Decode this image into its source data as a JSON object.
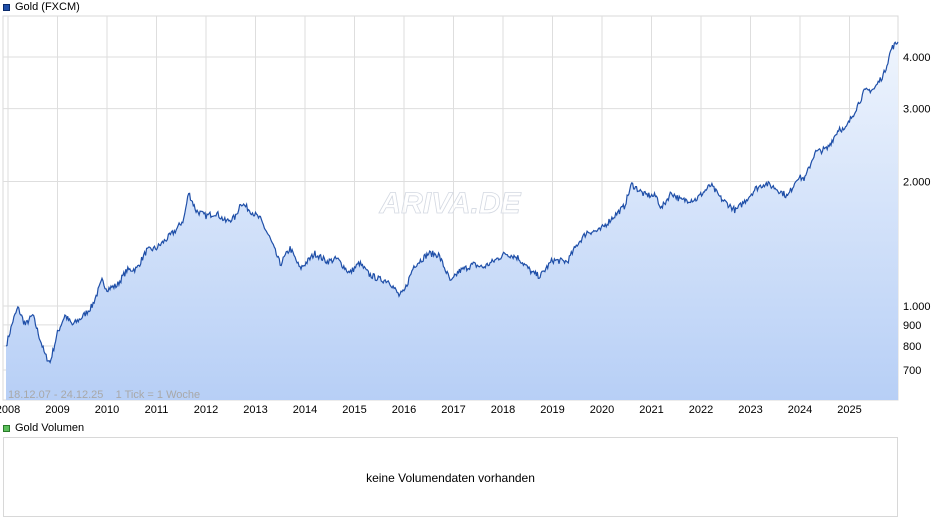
{
  "legend": {
    "price": "Gold (FXCM)",
    "price_color": "#1f4fa8",
    "volume": "Gold Volumen",
    "volume_color": "#5cbf5c"
  },
  "watermark": "ARIVA.DE",
  "range_info": "18.12.07 - 24.12.25    1 Tick = 1 Woche",
  "volume_message": "keine Volumendaten vorhanden",
  "colors": {
    "line": "#1f4fa8",
    "fill_top": "#eef4fd",
    "fill_bottom": "#b7cff6",
    "grid": "#dedede"
  },
  "chart_data": {
    "type": "area",
    "scale": "log",
    "xlim": [
      2007.96,
      2025.98
    ],
    "ylim": [
      600,
      4500
    ],
    "grid": true,
    "y_ticks": [
      {
        "value": 700,
        "label": "700"
      },
      {
        "value": 800,
        "label": "800"
      },
      {
        "value": 900,
        "label": "900"
      },
      {
        "value": 1000,
        "label": "1.000"
      },
      {
        "value": 2000,
        "label": "2.000"
      },
      {
        "value": 3000,
        "label": "3.000"
      },
      {
        "value": 4000,
        "label": "4.000"
      }
    ],
    "x_ticks": [
      {
        "value": 2008,
        "label": "2008"
      },
      {
        "value": 2009,
        "label": "2009"
      },
      {
        "value": 2010,
        "label": "2010"
      },
      {
        "value": 2011,
        "label": "2011"
      },
      {
        "value": 2012,
        "label": "2012"
      },
      {
        "value": 2013,
        "label": "2013"
      },
      {
        "value": 2014,
        "label": "2014"
      },
      {
        "value": 2015,
        "label": "2015"
      },
      {
        "value": 2016,
        "label": "2016"
      },
      {
        "value": 2017,
        "label": "2017"
      },
      {
        "value": 2018,
        "label": "2018"
      },
      {
        "value": 2019,
        "label": "2019"
      },
      {
        "value": 2020,
        "label": "2020"
      },
      {
        "value": 2021,
        "label": "2021"
      },
      {
        "value": 2022,
        "label": "2022"
      },
      {
        "value": 2023,
        "label": "2023"
      },
      {
        "value": 2024,
        "label": "2024"
      },
      {
        "value": 2025,
        "label": "2025"
      }
    ],
    "series": [
      {
        "points": [
          [
            2007.96,
            800
          ],
          [
            2008.1,
            920
          ],
          [
            2008.2,
            990
          ],
          [
            2008.35,
            900
          ],
          [
            2008.5,
            950
          ],
          [
            2008.65,
            830
          ],
          [
            2008.75,
            760
          ],
          [
            2008.85,
            730
          ],
          [
            2009.0,
            860
          ],
          [
            2009.15,
            950
          ],
          [
            2009.3,
            900
          ],
          [
            2009.5,
            940
          ],
          [
            2009.7,
            1000
          ],
          [
            2009.9,
            1150
          ],
          [
            2010.0,
            1100
          ],
          [
            2010.2,
            1120
          ],
          [
            2010.4,
            1220
          ],
          [
            2010.6,
            1230
          ],
          [
            2010.8,
            1360
          ],
          [
            2011.0,
            1380
          ],
          [
            2011.2,
            1450
          ],
          [
            2011.4,
            1530
          ],
          [
            2011.55,
            1620
          ],
          [
            2011.65,
            1880
          ],
          [
            2011.8,
            1700
          ],
          [
            2012.0,
            1650
          ],
          [
            2012.2,
            1680
          ],
          [
            2012.4,
            1600
          ],
          [
            2012.6,
            1640
          ],
          [
            2012.7,
            1780
          ],
          [
            2012.9,
            1700
          ],
          [
            2013.1,
            1620
          ],
          [
            2013.3,
            1450
          ],
          [
            2013.5,
            1260
          ],
          [
            2013.7,
            1380
          ],
          [
            2013.9,
            1230
          ],
          [
            2014.1,
            1300
          ],
          [
            2014.2,
            1340
          ],
          [
            2014.45,
            1280
          ],
          [
            2014.65,
            1300
          ],
          [
            2014.9,
            1200
          ],
          [
            2015.1,
            1270
          ],
          [
            2015.3,
            1190
          ],
          [
            2015.5,
            1160
          ],
          [
            2015.7,
            1150
          ],
          [
            2015.9,
            1060
          ],
          [
            2016.0,
            1080
          ],
          [
            2016.2,
            1250
          ],
          [
            2016.5,
            1340
          ],
          [
            2016.7,
            1330
          ],
          [
            2016.95,
            1140
          ],
          [
            2017.1,
            1210
          ],
          [
            2017.4,
            1260
          ],
          [
            2017.6,
            1240
          ],
          [
            2017.8,
            1280
          ],
          [
            2018.05,
            1340
          ],
          [
            2018.3,
            1310
          ],
          [
            2018.6,
            1200
          ],
          [
            2018.75,
            1180
          ],
          [
            2019.0,
            1290
          ],
          [
            2019.3,
            1280
          ],
          [
            2019.5,
            1410
          ],
          [
            2019.7,
            1510
          ],
          [
            2019.95,
            1520
          ],
          [
            2020.2,
            1630
          ],
          [
            2020.45,
            1740
          ],
          [
            2020.6,
            1970
          ],
          [
            2020.85,
            1860
          ],
          [
            2021.1,
            1840
          ],
          [
            2021.2,
            1720
          ],
          [
            2021.4,
            1880
          ],
          [
            2021.6,
            1800
          ],
          [
            2021.9,
            1810
          ],
          [
            2022.2,
            1960
          ],
          [
            2022.4,
            1820
          ],
          [
            2022.7,
            1700
          ],
          [
            2022.9,
            1800
          ],
          [
            2023.1,
            1920
          ],
          [
            2023.3,
            1980
          ],
          [
            2023.5,
            1930
          ],
          [
            2023.75,
            1840
          ],
          [
            2023.95,
            2050
          ],
          [
            2024.1,
            2030
          ],
          [
            2024.3,
            2350
          ],
          [
            2024.55,
            2400
          ],
          [
            2024.8,
            2700
          ],
          [
            2024.9,
            2650
          ],
          [
            2025.1,
            2950
          ],
          [
            2025.3,
            3300
          ],
          [
            2025.5,
            3350
          ],
          [
            2025.7,
            3650
          ],
          [
            2025.85,
            4200
          ],
          [
            2025.98,
            4350
          ]
        ]
      }
    ]
  }
}
